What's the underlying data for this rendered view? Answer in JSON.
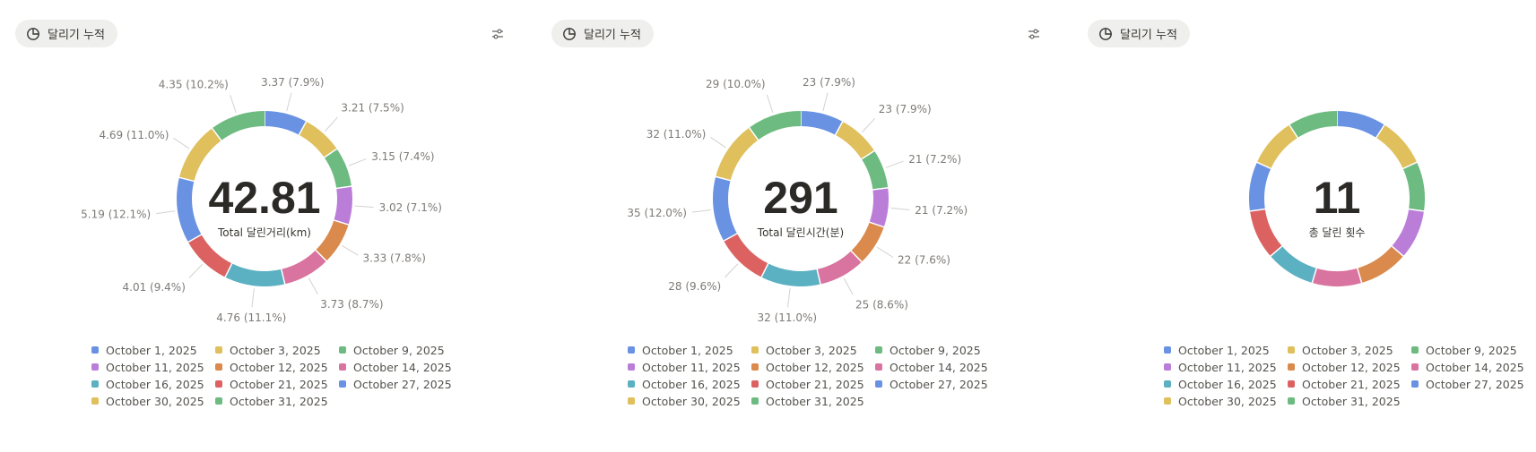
{
  "colors": [
    "#6a92e3",
    "#e0bf5d",
    "#6dbb80",
    "#bb7ed8",
    "#d98a4c",
    "#d9739f",
    "#5bb0c2",
    "#dc6262",
    "#6a92e3",
    "#e0bf5d",
    "#6dbb80"
  ],
  "legend": [
    "October 1, 2025",
    "October 3, 2025",
    "October 9, 2025",
    "October 11, 2025",
    "October 12, 2025",
    "October 14, 2025",
    "October 16, 2025",
    "October 21, 2025",
    "October 27, 2025",
    "October 30, 2025",
    "October 31, 2025"
  ],
  "panels": [
    {
      "chip_label": "달리기 누적",
      "center_value": "42.81",
      "center_label": "Total 달린거리(km)"
    },
    {
      "chip_label": "달리기 누적",
      "center_value": "291",
      "center_label": "Total 달린시간(분)"
    },
    {
      "chip_label": "달리기 누적",
      "center_value": "11",
      "center_label": "총 달린 횟수"
    }
  ],
  "chart_data": [
    {
      "type": "pie",
      "categories": [
        "October 1, 2025",
        "October 3, 2025",
        "October 9, 2025",
        "October 11, 2025",
        "October 12, 2025",
        "October 14, 2025",
        "October 16, 2025",
        "October 21, 2025",
        "October 27, 2025",
        "October 30, 2025",
        "October 31, 2025"
      ],
      "values": [
        3.37,
        3.21,
        3.15,
        3.02,
        3.33,
        3.73,
        4.76,
        4.01,
        5.19,
        4.69,
        4.35
      ],
      "labels": [
        "3.37 (7.9%)",
        "3.21 (7.5%)",
        "3.15 (7.4%)",
        "3.02 (7.1%)",
        "3.33 (7.8%)",
        "3.73 (8.7%)",
        "4.76 (11.1%)",
        "4.01 (9.4%)",
        "5.19 (12.1%)",
        "4.69 (11.0%)",
        "4.35 (10.2%)"
      ],
      "total": "42.81"
    },
    {
      "type": "pie",
      "categories": [
        "October 1, 2025",
        "October 3, 2025",
        "October 9, 2025",
        "October 11, 2025",
        "October 12, 2025",
        "October 14, 2025",
        "October 16, 2025",
        "October 21, 2025",
        "October 27, 2025",
        "October 30, 2025",
        "October 31, 2025"
      ],
      "values": [
        23,
        23,
        21,
        21,
        22,
        25,
        32,
        28,
        35,
        32,
        29
      ],
      "labels": [
        "23 (7.9%)",
        "23 (7.9%)",
        "21 (7.2%)",
        "21 (7.2%)",
        "22 (7.6%)",
        "25 (8.6%)",
        "32 (11.0%)",
        "28 (9.6%)",
        "35 (12.0%)",
        "32 (11.0%)",
        "29 (10.0%)"
      ],
      "total": "291"
    },
    {
      "type": "pie",
      "categories": [
        "October 1, 2025",
        "October 3, 2025",
        "October 9, 2025",
        "October 11, 2025",
        "October 12, 2025",
        "October 14, 2025",
        "October 16, 2025",
        "October 21, 2025",
        "October 27, 2025",
        "October 30, 2025",
        "October 31, 2025"
      ],
      "values": [
        1,
        1,
        1,
        1,
        1,
        1,
        1,
        1,
        1,
        1,
        1
      ],
      "labels": [],
      "total": "11"
    }
  ]
}
